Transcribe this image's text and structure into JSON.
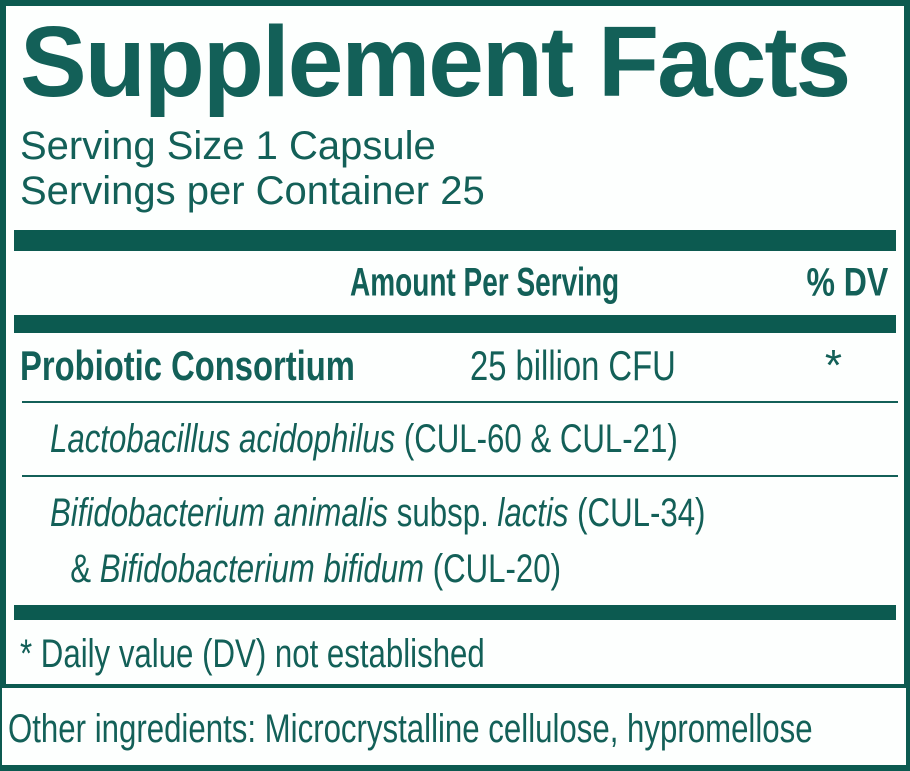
{
  "colors": {
    "teal_border_bars": "#0c5a50",
    "teal_text": "#136058",
    "background": "#fdfffe"
  },
  "title": "Supplement Facts",
  "serving": {
    "size_line": "Serving Size 1 Capsule",
    "container_line": "Servings per Container 25"
  },
  "table": {
    "header": {
      "amount": "Amount Per Serving",
      "dv": "% DV"
    },
    "main_row": {
      "name": "Probiotic Consortium",
      "amount": "25 billion CFU",
      "dv": "*"
    },
    "sub_rows": [
      {
        "line1": [
          {
            "text": "Lactobacillus acidophilus",
            "italic": true
          },
          {
            "text": " (CUL-60 & CUL-21)",
            "italic": false
          }
        ]
      },
      {
        "line1": [
          {
            "text": "Bifidobacterium animalis",
            "italic": true
          },
          {
            "text": " subsp. ",
            "italic": false
          },
          {
            "text": "lactis",
            "italic": true
          },
          {
            "text": " (CUL-34)",
            "italic": false
          }
        ],
        "line2": [
          {
            "text": "& ",
            "italic": false
          },
          {
            "text": "Bifidobacterium bifidum",
            "italic": true
          },
          {
            "text": " (CUL-20)",
            "italic": false
          }
        ]
      }
    ]
  },
  "footnote": "* Daily value (DV) not established",
  "other_ingredients": "Other ingredients: Microcrystalline cellulose, hypromellose"
}
